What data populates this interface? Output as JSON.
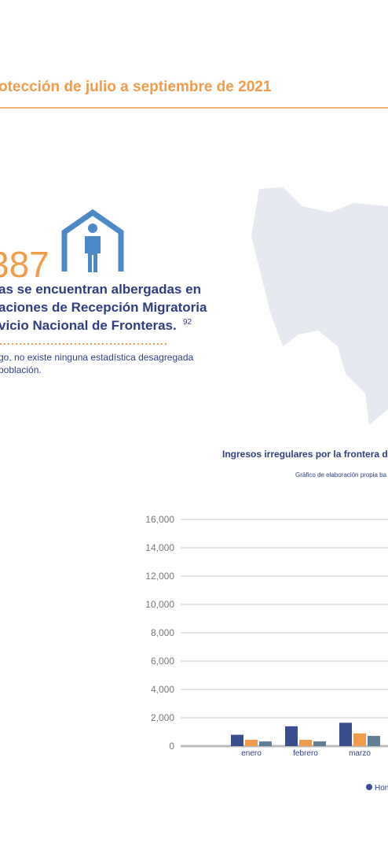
{
  "header": {
    "title": "otección de julio a septiembre de 2021"
  },
  "highlight": {
    "count": "387",
    "lines": [
      "as se encuentran albergadas en",
      "aciones de Recepción Migratoria",
      "vicio Nacional de Fronteras."
    ],
    "footnote": "92",
    "note_lines": [
      "go, no existe ninguna estadística desagregada",
      "población."
    ]
  },
  "chart_data": {
    "type": "bar",
    "title": "Ingresos irregulares por la frontera de",
    "subtitle": "Gráfico de elaboración propia ba",
    "categories": [
      "enero",
      "febrero",
      "marzo"
    ],
    "series": [
      {
        "name": "Hon",
        "color": "#3a4d8f",
        "values": [
          800,
          1400,
          1650
        ]
      },
      {
        "color": "#f29b4b",
        "values": [
          450,
          450,
          900
        ]
      },
      {
        "color": "#5f7f99",
        "values": [
          330,
          330,
          720
        ]
      }
    ],
    "ylim": [
      0,
      16000
    ],
    "yticks": [
      0,
      {
        "value": 2000,
        "label": "2,000"
      },
      {
        "value": 4000,
        "label": "4,000"
      },
      {
        "value": 6000,
        "label": "6,000"
      },
      {
        "value": 8000,
        "label": "8,000"
      },
      {
        "value": 10000,
        "label": "10,000"
      },
      {
        "value": 12000,
        "label": "12,000"
      },
      {
        "value": 14000,
        "label": "14,000"
      },
      {
        "value": 16000,
        "label": "16,000"
      }
    ],
    "grid": true
  }
}
